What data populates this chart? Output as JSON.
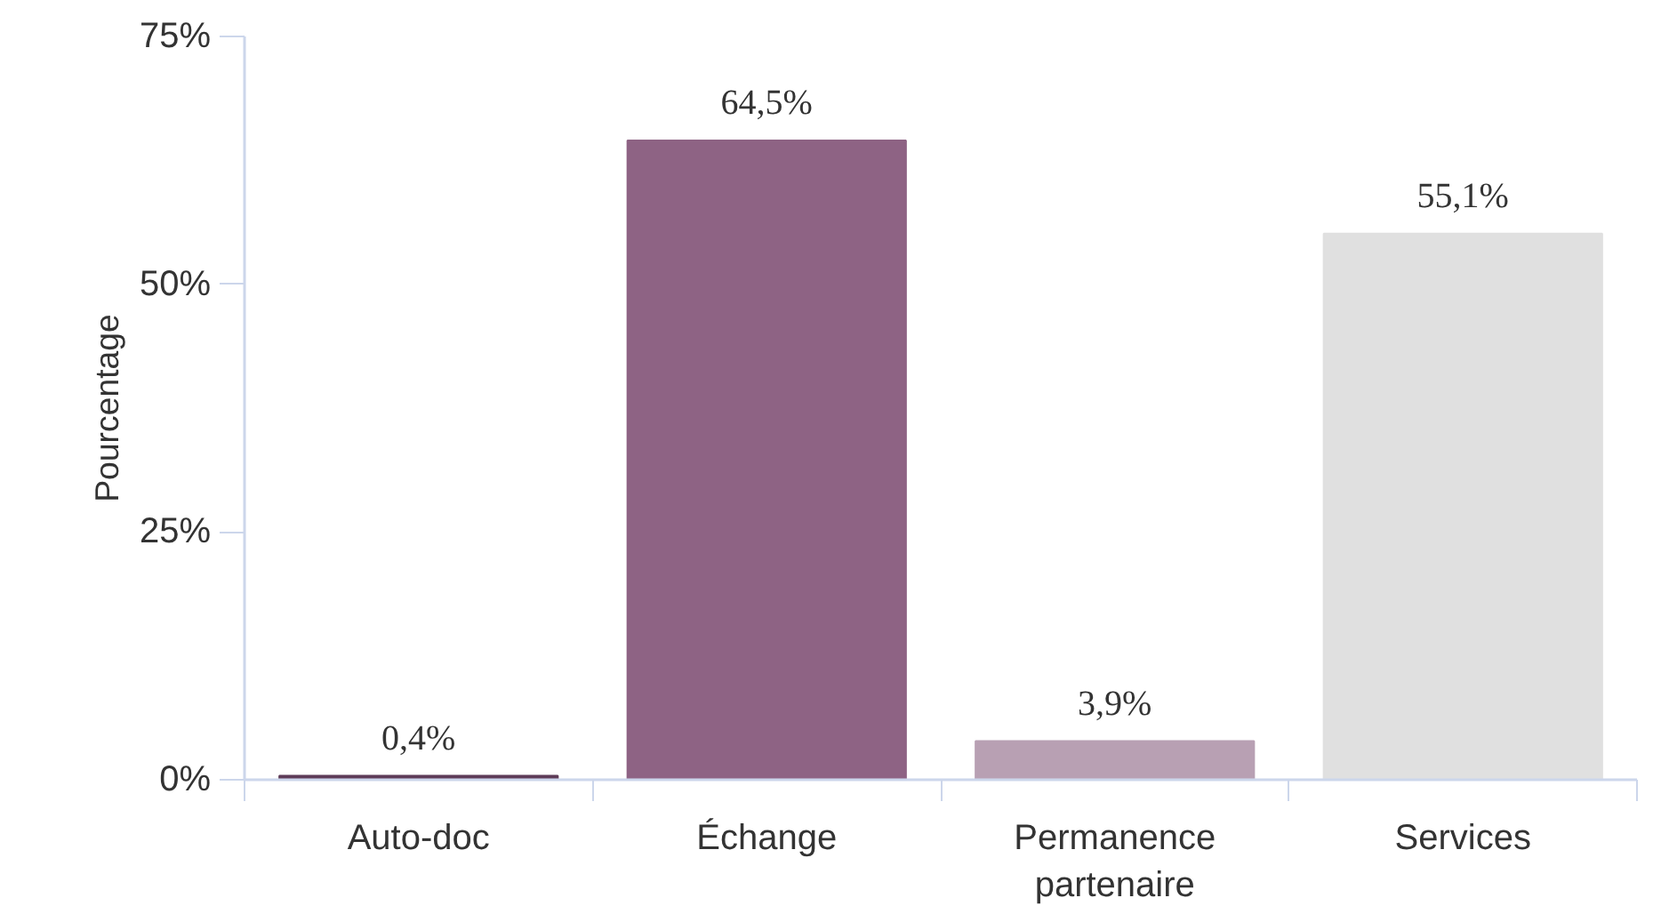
{
  "chart_data": {
    "type": "bar",
    "ylabel": "Pourcentage",
    "categories": [
      "Auto-doc",
      "Échange",
      "Permanence partenaire",
      "Services"
    ],
    "values": [
      0.4,
      64.5,
      3.9,
      55.1
    ],
    "colors": [
      "#5e3c58",
      "#8e6384",
      "#b8a0b3",
      "#e0e0e0"
    ],
    "value_labels": [
      "0,4%",
      "64,5%",
      "3,9%",
      "55,1%"
    ],
    "ylim": [
      0,
      75
    ],
    "yticks": [
      {
        "value": 0,
        "label": "0%"
      },
      {
        "value": 25,
        "label": "25%"
      },
      {
        "value": 50,
        "label": "50%"
      },
      {
        "value": 75,
        "label": "75%"
      }
    ],
    "grid": false
  }
}
